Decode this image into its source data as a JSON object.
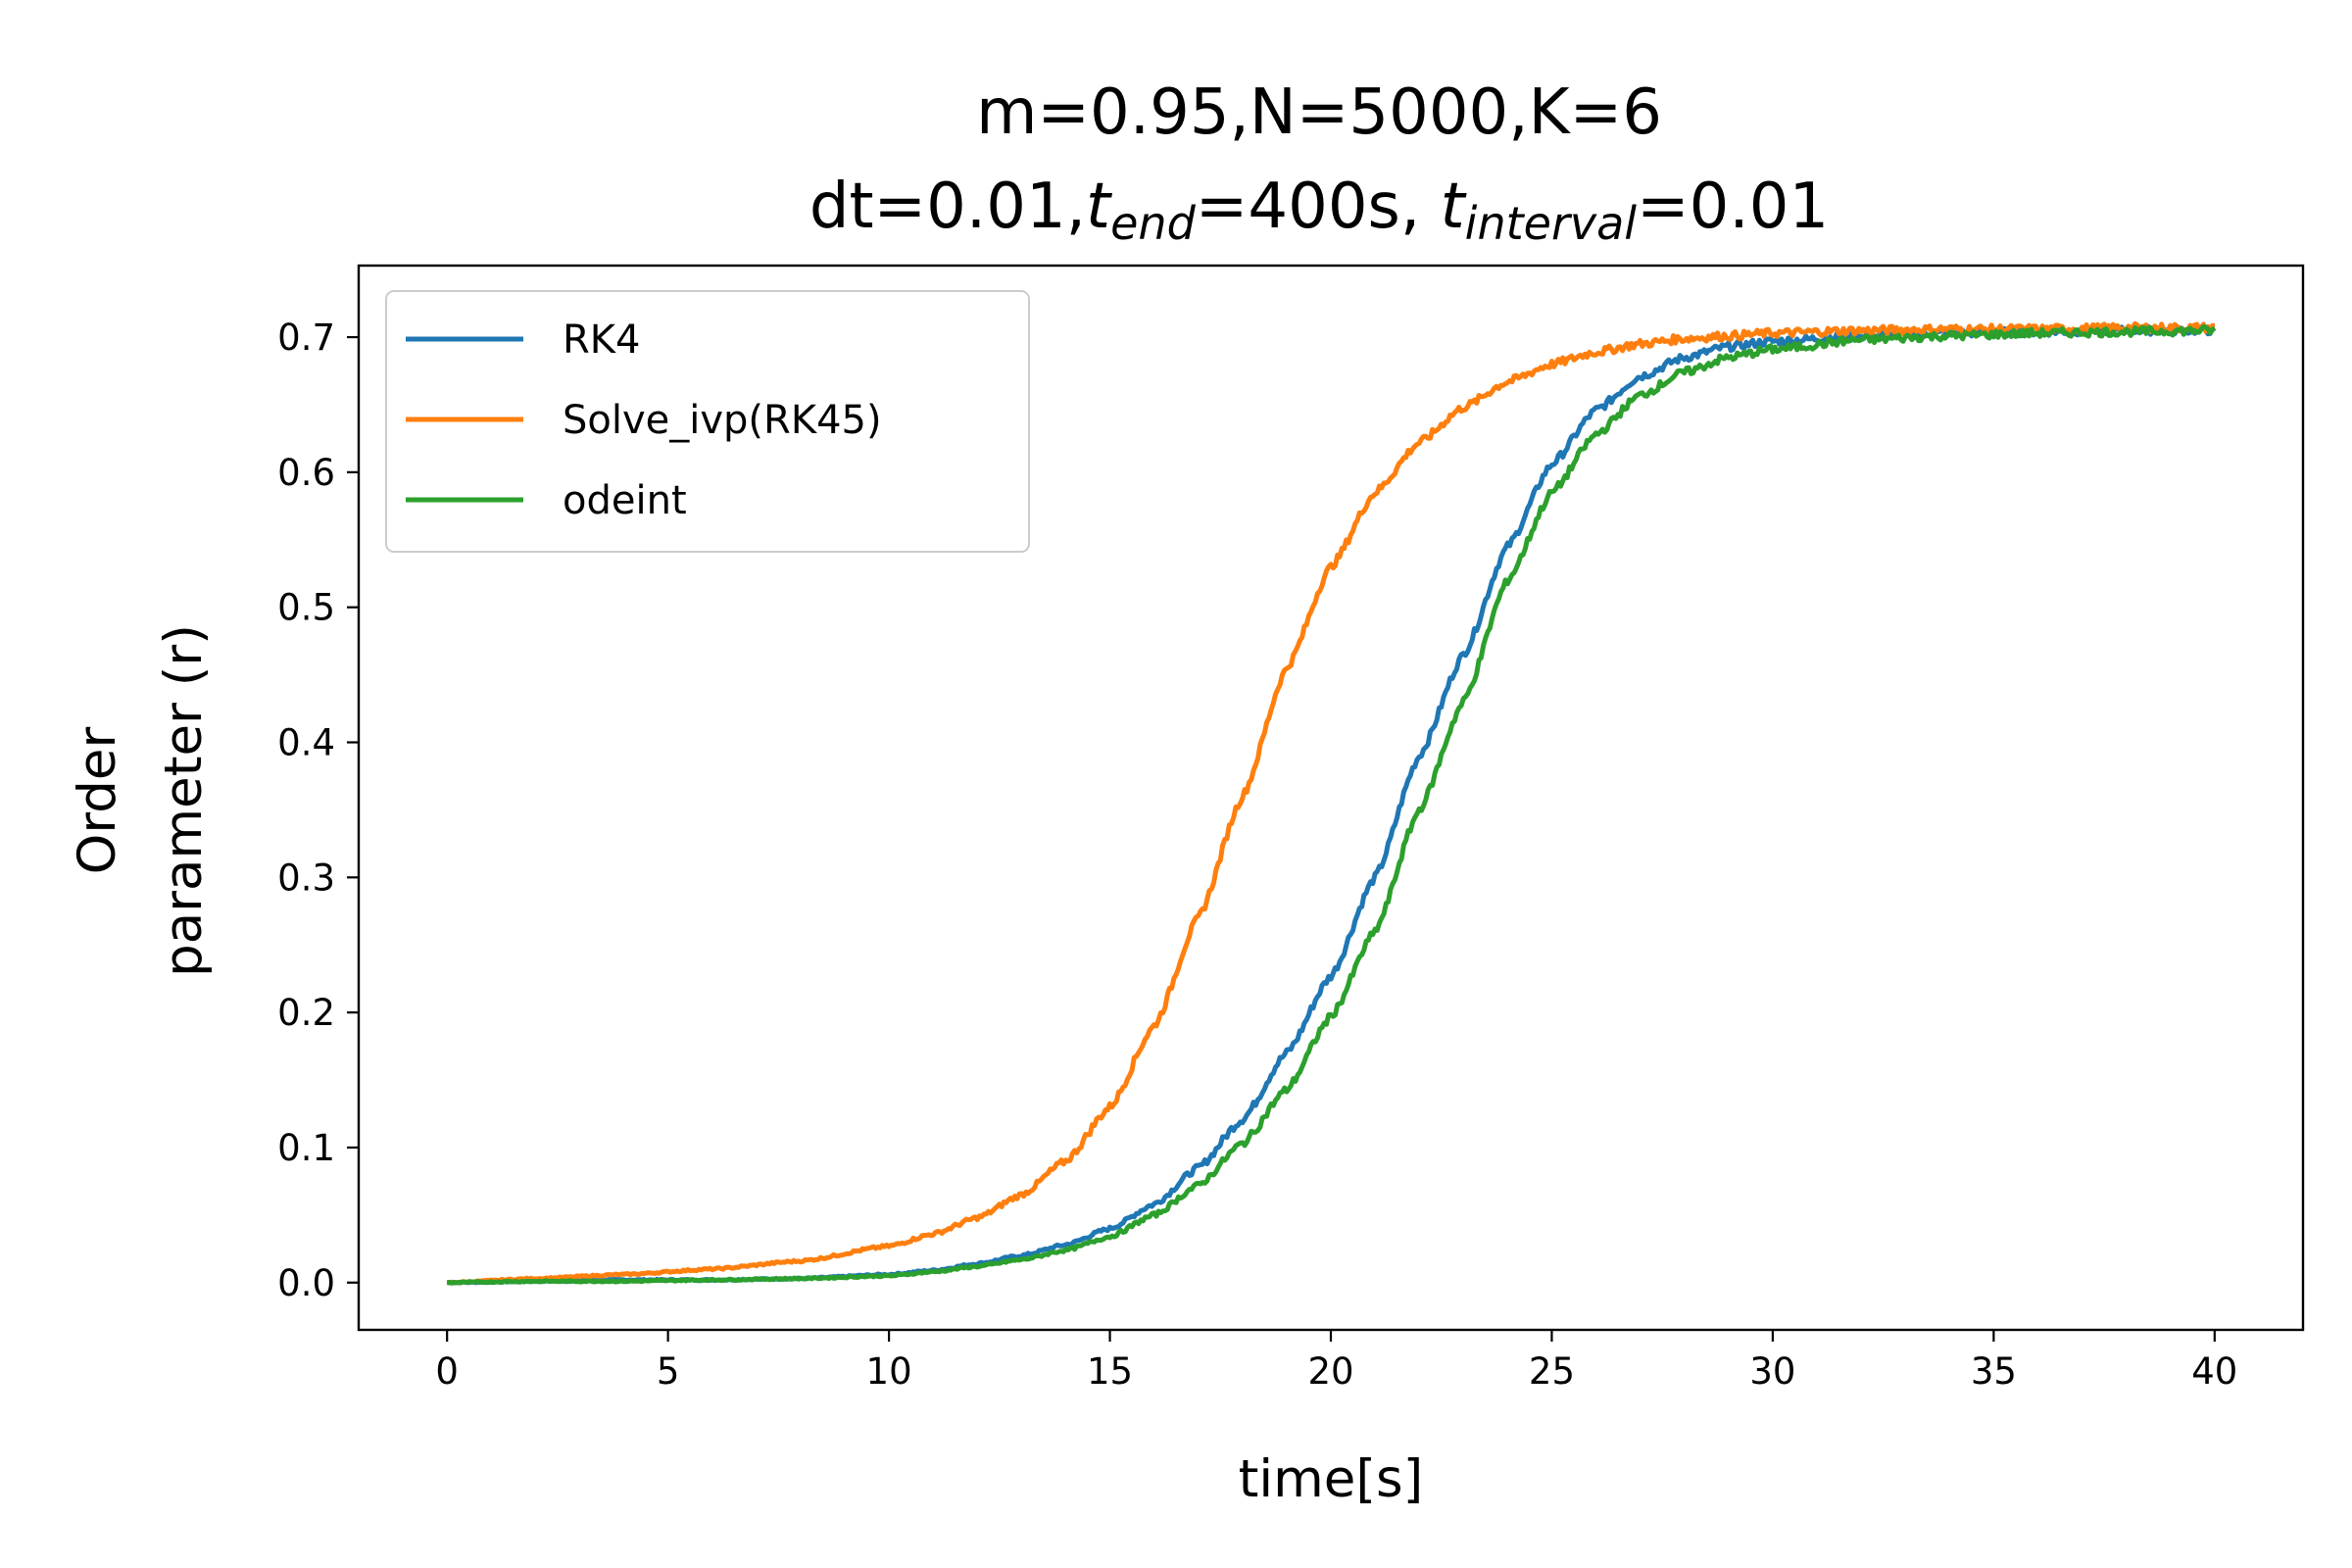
{
  "chart_data": {
    "type": "line",
    "title": {
      "line1": "m=0.95,N=5000,K=6",
      "line2_prefix": "dt=0.01,",
      "t_end_symbol": "t",
      "t_end_subscript": "end",
      "line2_mid": "=400s, ",
      "t_interval_symbol": "t",
      "t_interval_subscript": "interval",
      "line2_suffix": "=0.01"
    },
    "xlabel": "time[s]",
    "ylabel_line1": "Order",
    "ylabel_line2": "parameter (r)",
    "xlim": [
      -2,
      42
    ],
    "ylim": [
      -0.035,
      0.753
    ],
    "xticks": [
      0,
      5,
      10,
      15,
      20,
      25,
      30,
      35,
      40
    ],
    "xtick_labels": [
      "0",
      "5",
      "10",
      "15",
      "20",
      "25",
      "30",
      "35",
      "40"
    ],
    "yticks": [
      0.0,
      0.1,
      0.2,
      0.3,
      0.4,
      0.5,
      0.6,
      0.7
    ],
    "ytick_labels": [
      "0.0",
      "0.1",
      "0.2",
      "0.3",
      "0.4",
      "0.5",
      "0.6",
      "0.7"
    ],
    "grid": false,
    "legend_position": "top-left",
    "x": [
      0,
      2,
      4,
      6,
      8,
      10,
      11,
      12,
      13,
      14,
      15,
      16,
      17,
      18,
      19,
      20,
      21,
      22,
      23,
      24,
      25,
      26,
      27,
      28,
      29,
      30,
      32,
      34,
      36,
      38,
      40
    ],
    "series": [
      {
        "name": "RK4",
        "color": "#1f77b4",
        "values": [
          0.0,
          0.001,
          0.002,
          0.002,
          0.003,
          0.006,
          0.009,
          0.014,
          0.02,
          0.028,
          0.04,
          0.058,
          0.085,
          0.121,
          0.17,
          0.227,
          0.3,
          0.39,
          0.465,
          0.545,
          0.606,
          0.646,
          0.671,
          0.685,
          0.693,
          0.697,
          0.701,
          0.703,
          0.704,
          0.705,
          0.705
        ]
      },
      {
        "name": "Solve_ivp(RK45)",
        "color": "#ff7f0e",
        "values": [
          0.0,
          0.003,
          0.006,
          0.01,
          0.016,
          0.027,
          0.036,
          0.048,
          0.065,
          0.09,
          0.13,
          0.19,
          0.27,
          0.36,
          0.455,
          0.53,
          0.585,
          0.622,
          0.648,
          0.667,
          0.68,
          0.689,
          0.695,
          0.699,
          0.701,
          0.703,
          0.705,
          0.706,
          0.706,
          0.707,
          0.707
        ]
      },
      {
        "name": "odeint",
        "color": "#2ca02c",
        "values": [
          0.0,
          0.001,
          0.001,
          0.002,
          0.003,
          0.005,
          0.008,
          0.012,
          0.017,
          0.024,
          0.034,
          0.05,
          0.072,
          0.103,
          0.143,
          0.197,
          0.26,
          0.35,
          0.43,
          0.52,
          0.585,
          0.628,
          0.657,
          0.674,
          0.685,
          0.691,
          0.698,
          0.701,
          0.703,
          0.704,
          0.705
        ]
      }
    ]
  }
}
